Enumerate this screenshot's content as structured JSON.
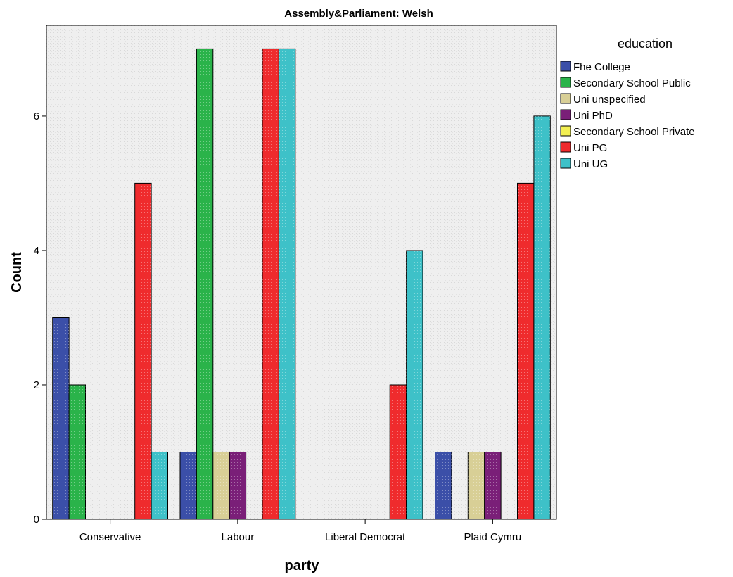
{
  "chart_data": {
    "type": "bar",
    "title": "Assembly&Parliament: Welsh",
    "xlabel": "party",
    "ylabel": "Count",
    "categories": [
      "Conservative",
      "Labour",
      "Liberal Democrat",
      "Plaid Cymru"
    ],
    "ylim": [
      0,
      7.35
    ],
    "yticks": [
      0,
      2,
      4,
      6
    ],
    "grid": false,
    "legend": {
      "title": "education",
      "placement": "right"
    },
    "series": [
      {
        "name": "Fhe College",
        "color": "#3b4fa8",
        "values": [
          3,
          1,
          0,
          1
        ]
      },
      {
        "name": "Secondary School Public",
        "color": "#2ab34a",
        "values": [
          2,
          7,
          0,
          0
        ]
      },
      {
        "name": "Uni unspecified",
        "color": "#d8cf96",
        "values": [
          0,
          1,
          0,
          1
        ]
      },
      {
        "name": "Uni PhD",
        "color": "#7a1f78",
        "values": [
          0,
          1,
          0,
          1
        ]
      },
      {
        "name": "Secondary School Private",
        "color": "#f3f053",
        "values": [
          0,
          0,
          0,
          0
        ]
      },
      {
        "name": "Uni PG",
        "color": "#ef2b2d",
        "values": [
          5,
          7,
          2,
          5
        ]
      },
      {
        "name": "Uni UG",
        "color": "#3ec1c8",
        "values": [
          1,
          7,
          4,
          6
        ]
      }
    ]
  }
}
